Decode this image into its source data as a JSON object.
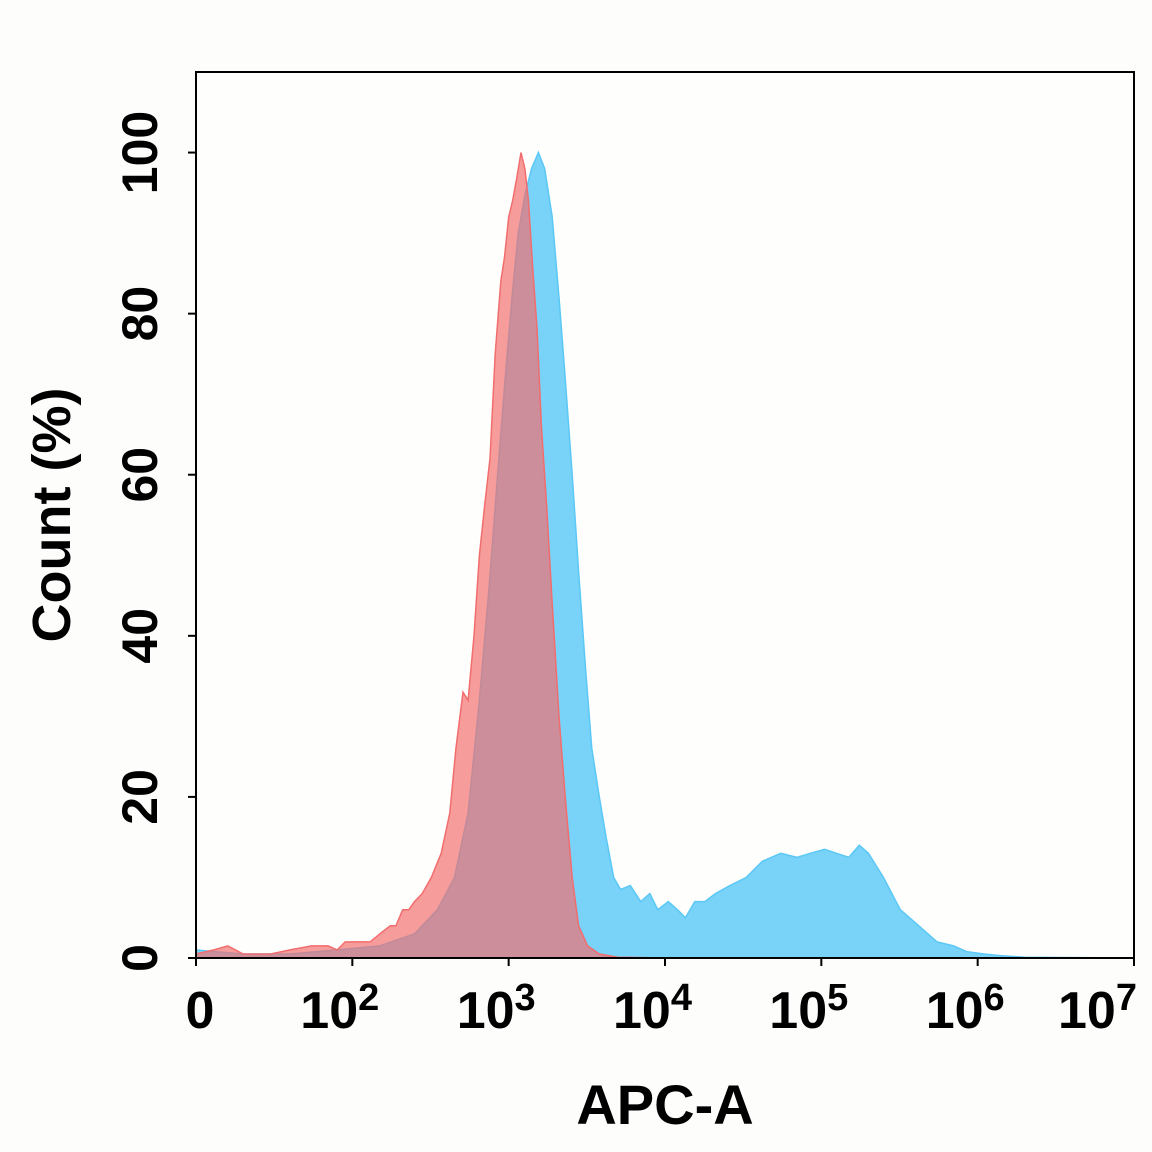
{
  "chart_data": {
    "type": "area",
    "xlabel": "APC-A",
    "ylabel": "Count  (%)",
    "x_scale": "log",
    "xlim": [
      10,
      10000000
    ],
    "ylim": [
      0,
      110
    ],
    "x_ticks": [
      {
        "value": 10,
        "label": "0",
        "base": "0",
        "exp": ""
      },
      {
        "value": 100,
        "label": "10^2",
        "base": "10",
        "exp": "2"
      },
      {
        "value": 1000,
        "label": "10^3",
        "base": "10",
        "exp": "3"
      },
      {
        "value": 10000,
        "label": "10^4",
        "base": "10",
        "exp": "4"
      },
      {
        "value": 100000,
        "label": "10^5",
        "base": "10",
        "exp": "5"
      },
      {
        "value": 1000000,
        "label": "10^6",
        "base": "10",
        "exp": "6"
      },
      {
        "value": 10000000,
        "label": "10^7",
        "base": "10",
        "exp": "7"
      }
    ],
    "y_ticks": [
      0,
      20,
      40,
      60,
      80,
      100
    ],
    "grid": false,
    "legend": "none",
    "series": [
      {
        "color": "#5bc8f5",
        "points": [
          [
            10,
            1
          ],
          [
            20,
            0.5
          ],
          [
            40,
            0.5
          ],
          [
            80,
            1
          ],
          [
            150,
            1.5
          ],
          [
            250,
            3
          ],
          [
            350,
            6
          ],
          [
            450,
            10
          ],
          [
            550,
            18
          ],
          [
            650,
            32
          ],
          [
            750,
            46
          ],
          [
            850,
            60
          ],
          [
            950,
            72
          ],
          [
            1050,
            82
          ],
          [
            1150,
            90
          ],
          [
            1280,
            95
          ],
          [
            1400,
            98
          ],
          [
            1550,
            100
          ],
          [
            1700,
            98
          ],
          [
            1900,
            92
          ],
          [
            2100,
            82
          ],
          [
            2300,
            72
          ],
          [
            2550,
            60
          ],
          [
            2800,
            48
          ],
          [
            3100,
            36
          ],
          [
            3400,
            26
          ],
          [
            3800,
            20
          ],
          [
            4200,
            15
          ],
          [
            4700,
            10
          ],
          [
            5200,
            8.5
          ],
          [
            6000,
            9
          ],
          [
            7000,
            7
          ],
          [
            8000,
            8
          ],
          [
            9000,
            6
          ],
          [
            10500,
            7
          ],
          [
            12000,
            6
          ],
          [
            13500,
            5
          ],
          [
            15500,
            7
          ],
          [
            18000,
            7
          ],
          [
            21000,
            8
          ],
          [
            26000,
            9
          ],
          [
            33000,
            10
          ],
          [
            42000,
            12
          ],
          [
            55000,
            13
          ],
          [
            70000,
            12.5
          ],
          [
            85000,
            13
          ],
          [
            105000,
            13.5
          ],
          [
            125000,
            13
          ],
          [
            150000,
            12.5
          ],
          [
            175000,
            14
          ],
          [
            200000,
            13
          ],
          [
            250000,
            10
          ],
          [
            320000,
            6
          ],
          [
            420000,
            4
          ],
          [
            550000,
            2
          ],
          [
            700000,
            1.5
          ],
          [
            850000,
            0.8
          ],
          [
            1100000,
            0.5
          ],
          [
            1400000,
            0.3
          ],
          [
            2000000,
            0.1
          ],
          [
            10000000,
            0
          ]
        ]
      },
      {
        "color": "#f26d6d",
        "points": [
          [
            10,
            0.5
          ],
          [
            13,
            1
          ],
          [
            16,
            1.5
          ],
          [
            20,
            0.5
          ],
          [
            30,
            0.5
          ],
          [
            40,
            1
          ],
          [
            55,
            1.5
          ],
          [
            70,
            1.5
          ],
          [
            80,
            1
          ],
          [
            90,
            2
          ],
          [
            110,
            2
          ],
          [
            130,
            2
          ],
          [
            150,
            3
          ],
          [
            175,
            4
          ],
          [
            190,
            4
          ],
          [
            210,
            6
          ],
          [
            230,
            6
          ],
          [
            250,
            7
          ],
          [
            280,
            8
          ],
          [
            320,
            10
          ],
          [
            370,
            13
          ],
          [
            420,
            18
          ],
          [
            460,
            26
          ],
          [
            510,
            33
          ],
          [
            550,
            32
          ],
          [
            600,
            40
          ],
          [
            650,
            50
          ],
          [
            700,
            56
          ],
          [
            760,
            62
          ],
          [
            820,
            75
          ],
          [
            890,
            84
          ],
          [
            940,
            87
          ],
          [
            1000,
            92
          ],
          [
            1060,
            94
          ],
          [
            1130,
            97
          ],
          [
            1200,
            100
          ],
          [
            1270,
            98
          ],
          [
            1340,
            94
          ],
          [
            1420,
            86
          ],
          [
            1520,
            78
          ],
          [
            1620,
            66
          ],
          [
            1750,
            56
          ],
          [
            1900,
            44
          ],
          [
            2100,
            30
          ],
          [
            2300,
            20
          ],
          [
            2550,
            10
          ],
          [
            2800,
            4
          ],
          [
            3200,
            1.5
          ],
          [
            3800,
            0.5
          ],
          [
            5000,
            0.1
          ],
          [
            10000,
            0
          ],
          [
            10000000,
            0
          ]
        ]
      }
    ]
  }
}
